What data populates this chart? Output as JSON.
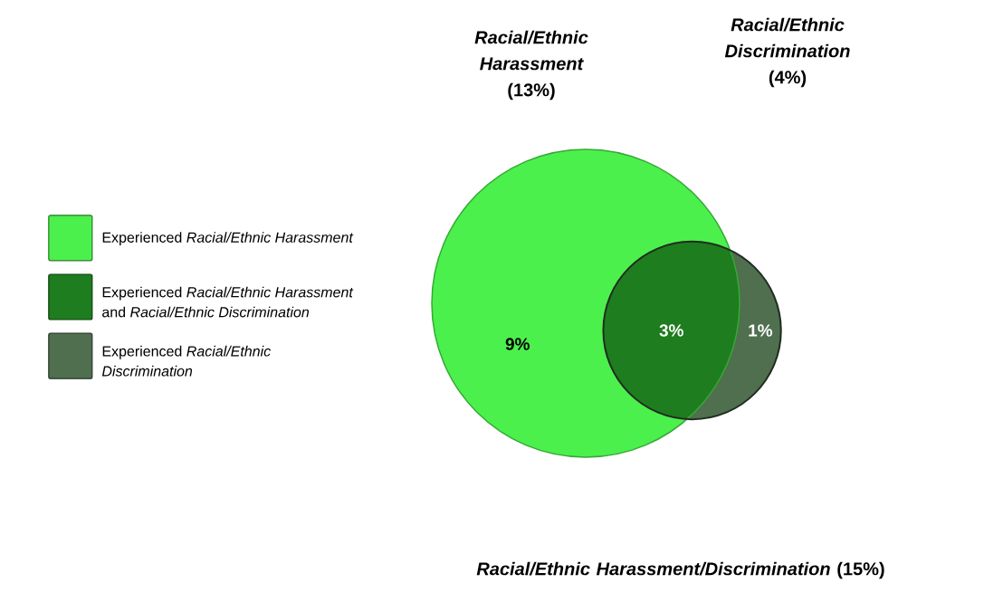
{
  "chart_data": {
    "type": "other",
    "categories": [
      "Experienced *Racial/Ethnic Harassment*",
      "Experienced *Racial/Ethnic Harassment* and *Racial/Ethnic Discrimination*",
      "Experienced *Racial/Ethnic Discrimination*"
    ],
    "values": [
      9,
      3,
      1
    ],
    "value_labels": [
      "9%",
      "3%",
      "1%"
    ],
    "colors": [
      "#4cf04c",
      "#1e7d1e",
      "#4f6f4f"
    ],
    "annotations": [
      "*Racial/Ethnic Harassment* (13%)",
      "*Racial/Ethnic Discrimination* (4%)",
      "*Racial/Ethnic  Harassment/Discrimination* (15%)"
    ]
  }
}
